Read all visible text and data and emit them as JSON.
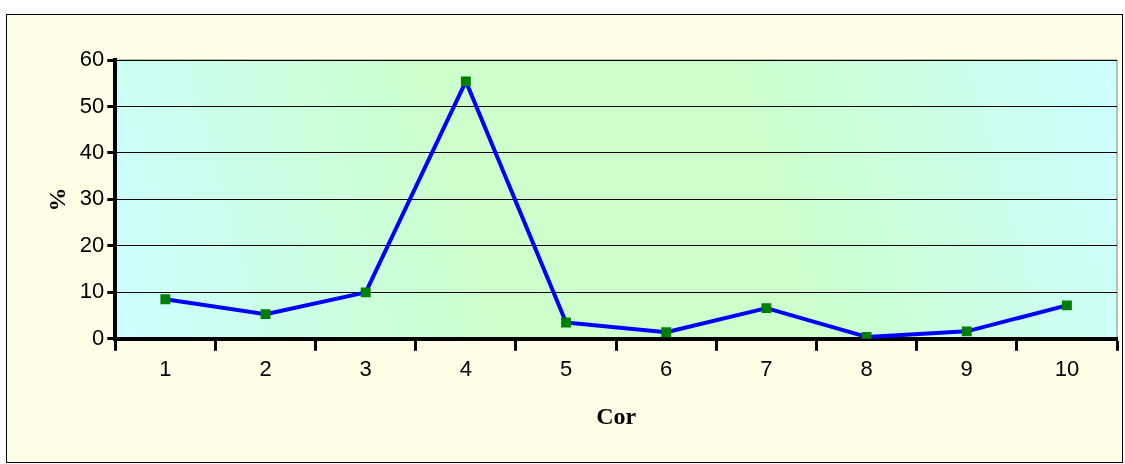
{
  "chart_data": {
    "type": "line",
    "xlabel": "Cor",
    "ylabel": "%",
    "categories": [
      "1",
      "2",
      "3",
      "4",
      "5",
      "6",
      "7",
      "8",
      "9",
      "10"
    ],
    "series": [
      {
        "color": "#0000ff",
        "values": [
          8.5,
          5.3,
          10.0,
          55.4,
          3.5,
          1.4,
          6.6,
          0.4,
          1.6,
          7.2
        ]
      }
    ],
    "ylim": [
      0,
      60
    ],
    "yticks": [
      0,
      10,
      20,
      30,
      40,
      50,
      60
    ],
    "grid": "y",
    "legend": false,
    "marker": "square",
    "line_style": "solid"
  }
}
